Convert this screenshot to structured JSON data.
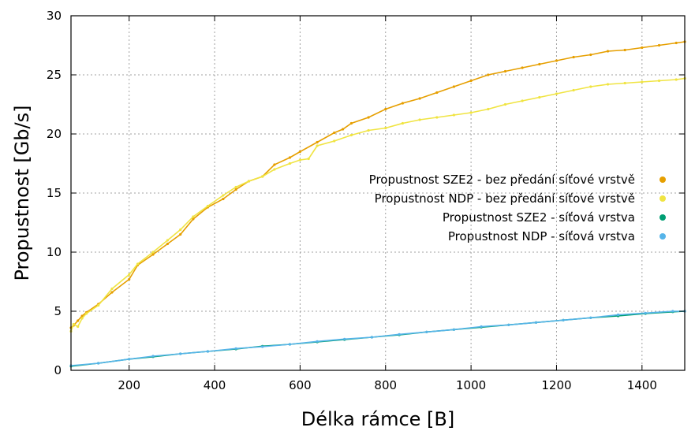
{
  "chart_data": {
    "type": "line",
    "xlabel": "Délka rámce [B]",
    "ylabel": "Propustnost [Gb/s]",
    "xlim": [
      64,
      1500
    ],
    "ylim": [
      0,
      30
    ],
    "xticks": [
      200,
      400,
      600,
      800,
      1000,
      1200,
      1400
    ],
    "yticks": [
      0,
      5,
      10,
      15,
      20,
      25,
      30
    ],
    "grid": true,
    "legend_position": "right-middle",
    "series": [
      {
        "name": "Propustnost SZE2 - bez předání síťové vrstvě",
        "color": "#e69f00",
        "x": [
          64,
          70,
          80,
          90,
          100,
          128,
          160,
          200,
          220,
          256,
          290,
          320,
          350,
          384,
          420,
          450,
          480,
          512,
          540,
          576,
          600,
          640,
          680,
          700,
          720,
          760,
          800,
          840,
          880,
          920,
          960,
          1000,
          1040,
          1080,
          1120,
          1160,
          1200,
          1240,
          1280,
          1320,
          1360,
          1400,
          1440,
          1480,
          1500
        ],
        "y": [
          3.6,
          3.8,
          4.2,
          4.6,
          4.9,
          5.6,
          6.6,
          7.7,
          8.9,
          9.8,
          10.7,
          11.5,
          12.8,
          13.8,
          14.5,
          15.3,
          16.0,
          16.4,
          17.4,
          18.0,
          18.5,
          19.3,
          20.1,
          20.4,
          20.9,
          21.4,
          22.1,
          22.6,
          23.0,
          23.5,
          24.0,
          24.5,
          25.0,
          25.3,
          25.6,
          25.9,
          26.2,
          26.5,
          26.7,
          27.0,
          27.1,
          27.3,
          27.5,
          27.7,
          27.8
        ]
      },
      {
        "name": "Propustnost NDP - bez předání síťové vrstvě",
        "color": "#f0e442",
        "x": [
          64,
          70,
          80,
          90,
          100,
          128,
          160,
          200,
          220,
          256,
          290,
          320,
          350,
          384,
          420,
          450,
          480,
          512,
          540,
          576,
          600,
          620,
          640,
          680,
          720,
          760,
          800,
          840,
          880,
          920,
          960,
          1000,
          1040,
          1080,
          1120,
          1160,
          1200,
          1240,
          1280,
          1320,
          1360,
          1400,
          1440,
          1480,
          1500
        ],
        "y": [
          3.3,
          3.9,
          3.7,
          4.4,
          4.8,
          5.5,
          6.9,
          8.1,
          9.0,
          10.0,
          11.0,
          11.9,
          13.0,
          13.9,
          14.8,
          15.5,
          16.0,
          16.4,
          17.0,
          17.5,
          17.8,
          17.9,
          19.0,
          19.4,
          19.9,
          20.3,
          20.5,
          20.9,
          21.2,
          21.4,
          21.6,
          21.8,
          22.1,
          22.5,
          22.8,
          23.1,
          23.4,
          23.7,
          24.0,
          24.2,
          24.3,
          24.4,
          24.5,
          24.6,
          24.7
        ]
      },
      {
        "name": "Propustnost SZE2 - síťová vrstva",
        "color": "#009e73",
        "x": [
          64,
          128,
          200,
          256,
          320,
          384,
          450,
          512,
          576,
          640,
          704,
          768,
          832,
          896,
          960,
          1024,
          1088,
          1152,
          1216,
          1280,
          1344,
          1408,
          1472,
          1500
        ],
        "y": [
          0.35,
          0.6,
          0.95,
          1.15,
          1.4,
          1.6,
          1.8,
          2.05,
          2.2,
          2.4,
          2.6,
          2.8,
          3.0,
          3.25,
          3.45,
          3.65,
          3.85,
          4.05,
          4.25,
          4.45,
          4.6,
          4.8,
          4.95,
          5.0
        ]
      },
      {
        "name": "Propustnost NDP  - síťová vrstva",
        "color": "#56b4e9",
        "x": [
          64,
          128,
          200,
          256,
          320,
          384,
          450,
          512,
          576,
          640,
          704,
          768,
          832,
          896,
          960,
          1024,
          1088,
          1152,
          1216,
          1280,
          1344,
          1408,
          1472,
          1500
        ],
        "y": [
          0.4,
          0.6,
          0.95,
          1.2,
          1.4,
          1.6,
          1.85,
          2.0,
          2.2,
          2.45,
          2.65,
          2.8,
          3.05,
          3.25,
          3.45,
          3.7,
          3.85,
          4.05,
          4.25,
          4.45,
          4.7,
          4.85,
          5.0,
          5.0
        ]
      }
    ]
  }
}
